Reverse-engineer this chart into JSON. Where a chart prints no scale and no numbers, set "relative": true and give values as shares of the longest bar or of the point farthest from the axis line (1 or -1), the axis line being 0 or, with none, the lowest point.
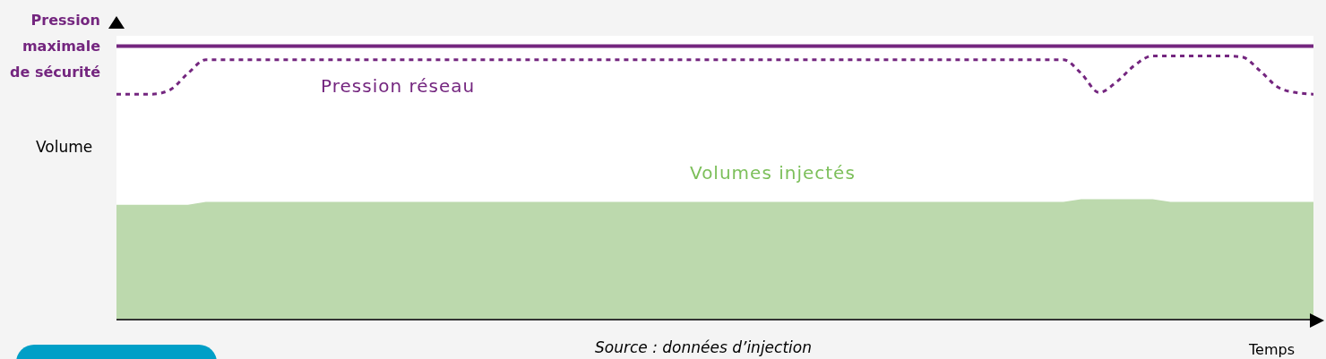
{
  "chart_data": {
    "type": "line",
    "relative": true,
    "xlabel": "Temps",
    "ylabel": "Volume",
    "marker": "none",
    "annotations": [
      "Source : données d’injection"
    ],
    "categories": [
      null,
      null,
      null,
      null,
      null,
      null,
      null,
      null,
      null,
      null,
      null,
      null,
      null,
      null,
      null,
      null,
      null,
      null,
      null,
      null,
      null,
      null,
      null,
      null,
      null,
      null,
      null,
      null,
      null,
      null,
      null,
      null,
      null,
      null,
      null,
      null,
      null,
      null,
      null,
      null,
      null,
      null,
      null,
      null,
      null,
      null,
      null,
      null,
      null,
      null,
      null,
      null,
      null,
      null,
      null,
      null,
      null,
      null,
      null,
      null,
      null,
      null,
      null,
      null,
      null,
      null,
      null,
      null
    ],
    "series": [
      {
        "name": "Volumes injectés",
        "type": "area",
        "color": "#bcd9ad",
        "values": [
          0.42,
          0.42,
          0.42,
          0.42,
          0.42,
          0.43,
          0.43,
          0.43,
          0.43,
          0.43,
          0.43,
          0.43,
          0.43,
          0.43,
          0.43,
          0.43,
          0.43,
          0.43,
          0.43,
          0.43,
          0.43,
          0.43,
          0.43,
          0.43,
          0.43,
          0.43,
          0.43,
          0.43,
          0.43,
          0.43,
          0.43,
          0.43,
          0.43,
          0.43,
          0.43,
          0.43,
          0.43,
          0.43,
          0.43,
          0.43,
          0.43,
          0.43,
          0.43,
          0.43,
          0.43,
          0.43,
          0.43,
          0.43,
          0.43,
          0.43,
          0.43,
          0.43,
          0.43,
          0.43,
          0.44,
          0.44,
          0.44,
          0.44,
          0.44,
          0.43,
          0.43,
          0.43,
          0.43,
          0.43,
          0.43,
          0.43,
          0.43,
          0.43
        ]
      },
      {
        "name": "Pression maximale de sécurité",
        "line_style": "solid",
        "color": "#74267f",
        "values": [
          1,
          1,
          1,
          1,
          1,
          1,
          1,
          1,
          1,
          1,
          1,
          1,
          1,
          1,
          1,
          1,
          1,
          1,
          1,
          1,
          1,
          1,
          1,
          1,
          1,
          1,
          1,
          1,
          1,
          1,
          1,
          1,
          1,
          1,
          1,
          1,
          1,
          1,
          1,
          1,
          1,
          1,
          1,
          1,
          1,
          1,
          1,
          1,
          1,
          1,
          1,
          1,
          1,
          1,
          1,
          1,
          1,
          1,
          1,
          1,
          1,
          1,
          1,
          1,
          1,
          1,
          1,
          1
        ]
      },
      {
        "name": "Pression réseau",
        "line_style": "dashed",
        "color": "#74267f",
        "values": [
          0.824,
          0.824,
          0.824,
          0.84,
          0.9,
          0.95,
          0.95,
          0.95,
          0.95,
          0.95,
          0.95,
          0.95,
          0.95,
          0.95,
          0.95,
          0.95,
          0.95,
          0.95,
          0.95,
          0.95,
          0.95,
          0.95,
          0.95,
          0.95,
          0.95,
          0.95,
          0.95,
          0.95,
          0.95,
          0.95,
          0.95,
          0.95,
          0.95,
          0.95,
          0.95,
          0.95,
          0.95,
          0.95,
          0.95,
          0.95,
          0.95,
          0.95,
          0.95,
          0.95,
          0.95,
          0.95,
          0.95,
          0.95,
          0.95,
          0.95,
          0.95,
          0.95,
          0.95,
          0.95,
          0.9,
          0.83,
          0.87,
          0.93,
          0.964,
          0.964,
          0.964,
          0.964,
          0.964,
          0.96,
          0.91,
          0.85,
          0.83,
          0.824
        ]
      }
    ]
  }
}
